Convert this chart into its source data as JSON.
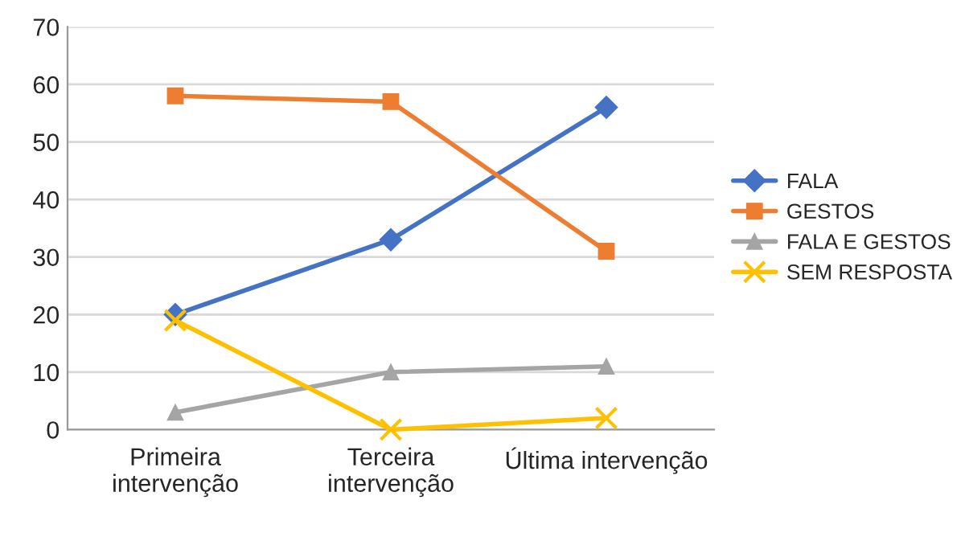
{
  "chart_data": {
    "type": "line",
    "categories": [
      "Primeira\nintervenção",
      "Terceira\nintervenção",
      "Última intervenção"
    ],
    "series": [
      {
        "name": "FALA",
        "color": "#4472c4",
        "marker": "diamond",
        "values": [
          20,
          33,
          56
        ]
      },
      {
        "name": "GESTOS",
        "color": "#ed7d31",
        "marker": "square",
        "values": [
          58,
          57,
          31
        ]
      },
      {
        "name": "FALA E GESTOS",
        "color": "#a5a5a5",
        "marker": "triangle",
        "values": [
          3,
          10,
          11
        ]
      },
      {
        "name": "SEM RESPOSTA",
        "color": "#ffc000",
        "marker": "cross",
        "values": [
          19,
          0,
          2
        ]
      }
    ],
    "ylim": [
      0,
      70
    ],
    "yticks": [
      0,
      10,
      20,
      30,
      40,
      50,
      60,
      70
    ],
    "grid": "y",
    "legend": "right",
    "line_style": "solid"
  }
}
